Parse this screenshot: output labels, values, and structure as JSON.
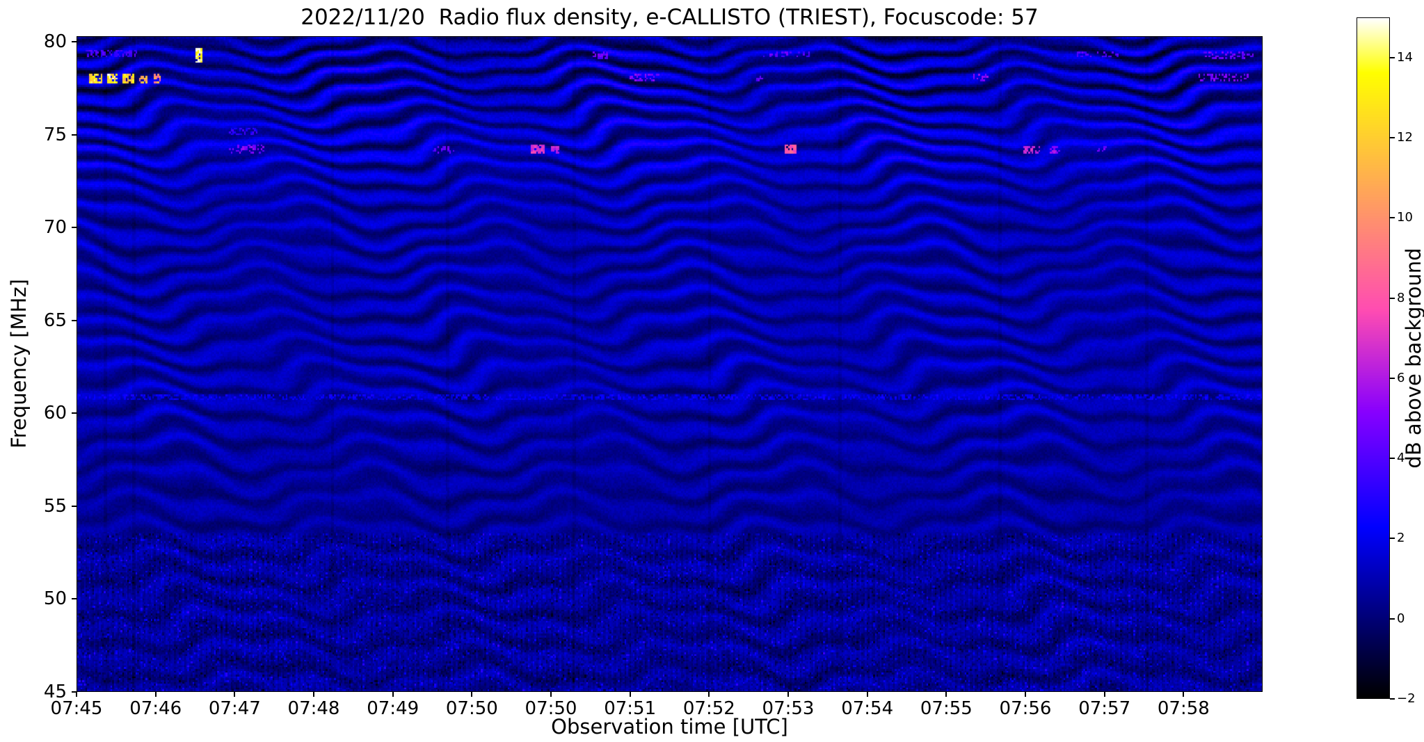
{
  "colors": {
    "background": "#ffffff",
    "axes_text": "#000000"
  },
  "chart_data": {
    "type": "heatmap",
    "title": "2022/11/20  Radio flux density, e-CALLISTO (TRIEST), Focuscode: 57",
    "xlabel": "Observation time [UTC]",
    "ylabel": "Frequency [MHz]",
    "x_ticks": [
      "07:45",
      "07:46",
      "07:47",
      "07:48",
      "07:49",
      "07:50",
      "07:50",
      "07:51",
      "07:52",
      "07:53",
      "07:54",
      "07:55",
      "07:56",
      "07:57",
      "07:58"
    ],
    "y_ticks": [
      80,
      75,
      70,
      65,
      60,
      55,
      50,
      45
    ],
    "ylim": [
      45,
      80.3
    ],
    "time_span_minutes": 14.33,
    "grid_on": false,
    "colorbar": {
      "label": "dB above background",
      "vmin": -2,
      "vmax": 15,
      "colormap": "gnuplot2",
      "ticks": [
        {
          "v": 14,
          "label": "14"
        },
        {
          "v": 12,
          "label": "12"
        },
        {
          "v": 10,
          "label": "10"
        },
        {
          "v": 8,
          "label": "8"
        },
        {
          "v": 6,
          "label": "6"
        },
        {
          "v": 4,
          "label": "4"
        },
        {
          "v": 2,
          "label": "2"
        },
        {
          "v": 0,
          "label": "0"
        },
        {
          "v": -2,
          "label": "−2"
        }
      ]
    },
    "summary": "Dynamic radio spectrum 45–80 MHz vs time 07:45–07:59 UTC. Background mostly −2 to +3 dB (black/dark-blue with wavy blue interference fringes, fringe spacing ~1–1.8 MHz, undulating with ~2.5 min period). Narrowband RFI: strong bursts near 78 MHz reaching ~11–15 dB (yellow/white) during 07:45–07:46 and a white-yellow spike near 79.3 MHz at ~07:46:30; magenta bursts ~5–8 dB near 74.2 MHz at ~07:47, 07:50–07:51, 07:53, 07:55–07:56; fainter violet dashes near 78 and 79.3 MHz through 07:51–07:58; speckled noisy texture below ~53 MHz; faint persistent bright line near 60.9 MHz.",
    "pattern": {
      "seed": 20221120,
      "grid": {
        "cols": 710,
        "rows": 353
      },
      "band": {
        "spacing0": 0.92,
        "spacingSlope": 0.024
      },
      "harm2": 0.22,
      "base": [
        [
          45,
          0.45
        ],
        [
          50,
          0.5
        ],
        [
          53,
          0.55
        ],
        [
          57,
          0.62
        ],
        [
          61,
          0.8
        ],
        [
          68,
          0.78
        ],
        [
          72,
          0.85
        ],
        [
          74,
          1.1
        ],
        [
          75.5,
          1.05
        ],
        [
          77,
          0.75
        ],
        [
          78.5,
          0.8
        ],
        [
          80.3,
          0.55
        ]
      ],
      "amp": [
        [
          45,
          0.5
        ],
        [
          50,
          0.55
        ],
        [
          53,
          0.5
        ],
        [
          57,
          0.6
        ],
        [
          61,
          0.8
        ],
        [
          68,
          0.8
        ],
        [
          72,
          0.9
        ],
        [
          74,
          1.25
        ],
        [
          76,
          1.3
        ],
        [
          78,
          1.6
        ],
        [
          79.5,
          1.5
        ],
        [
          80.3,
          1.0
        ]
      ],
      "noise": [
        [
          45,
          0.95
        ],
        [
          52,
          0.9
        ],
        [
          54,
          0.55
        ],
        [
          70,
          0.5
        ],
        [
          76,
          0.6
        ],
        [
          80.3,
          0.7
        ]
      ],
      "wobble": {
        "w1": [
          [
            45,
            0.3
          ],
          [
            62,
            0.42
          ],
          [
            80.3,
            0.55
          ]
        ],
        "period1": 2.6,
        "k1": 0.034,
        "a1": 0.18,
        "b1": 0.5,
        "w2": 0.2,
        "period2": 1.05,
        "k2": 0.12,
        "fade": 0.25,
        "fadePeriod": 3.3,
        "fadeK": 0.02
      },
      "speckle": {
        "fmax": 53.5,
        "hi": 0.93,
        "lo": 0.07,
        "boost": 1.1,
        "cut": 1.0
      },
      "stripe": {
        "amp": 0.3,
        "period": 3.1
      },
      "vlines": {
        "positions": [
          0.023,
          0.047,
          0.214,
          0.311,
          0.418,
          0.533,
          0.642,
          0.778,
          0.902
        ],
        "strength": 0.35
      }
    },
    "bright_features": [
      {
        "x0": 0.006,
        "x1": 0.05,
        "f0": 79.15,
        "f1": 79.55,
        "db": 3.8,
        "density": 0.45
      },
      {
        "x0": 0.009,
        "x1": 0.021,
        "f0": 77.8,
        "f1": 78.3,
        "db": 12.5,
        "density": 0.8
      },
      {
        "x0": 0.025,
        "x1": 0.033,
        "f0": 77.8,
        "f1": 78.3,
        "db": 13.5,
        "density": 0.8
      },
      {
        "x0": 0.037,
        "x1": 0.047,
        "f0": 77.85,
        "f1": 78.25,
        "db": 12,
        "density": 0.7
      },
      {
        "x0": 0.052,
        "x1": 0.058,
        "f0": 77.8,
        "f1": 78.2,
        "db": 11,
        "density": 0.7
      },
      {
        "x0": 0.062,
        "x1": 0.07,
        "f0": 77.85,
        "f1": 78.25,
        "db": 10,
        "density": 0.6
      },
      {
        "x0": 0.099,
        "x1": 0.1045,
        "f0": 78.9,
        "f1": 79.65,
        "db": 14.5,
        "density": 0.95
      },
      {
        "x0": 0.126,
        "x1": 0.158,
        "f0": 74.0,
        "f1": 74.45,
        "db": 5.0,
        "density": 0.4
      },
      {
        "x0": 0.128,
        "x1": 0.152,
        "f0": 75.0,
        "f1": 75.35,
        "db": 3.2,
        "density": 0.5
      },
      {
        "x0": 0.3,
        "x1": 0.318,
        "f0": 74.05,
        "f1": 74.4,
        "db": 4.5,
        "density": 0.35
      },
      {
        "x0": 0.383,
        "x1": 0.394,
        "f0": 74.0,
        "f1": 74.45,
        "db": 7.0,
        "density": 0.8
      },
      {
        "x0": 0.399,
        "x1": 0.407,
        "f0": 74.05,
        "f1": 74.4,
        "db": 6.0,
        "density": 0.7
      },
      {
        "x0": 0.435,
        "x1": 0.447,
        "f0": 79.1,
        "f1": 79.5,
        "db": 4.5,
        "density": 0.5
      },
      {
        "x0": 0.466,
        "x1": 0.492,
        "f0": 77.9,
        "f1": 78.3,
        "db": 5.0,
        "density": 0.45
      },
      {
        "x0": 0.572,
        "x1": 0.58,
        "f0": 77.9,
        "f1": 78.2,
        "db": 4.5,
        "density": 0.5
      },
      {
        "x0": 0.578,
        "x1": 0.618,
        "f0": 79.15,
        "f1": 79.5,
        "db": 4.2,
        "density": 0.35
      },
      {
        "x0": 0.597,
        "x1": 0.606,
        "f0": 74.05,
        "f1": 74.5,
        "db": 8.0,
        "density": 0.85
      },
      {
        "x0": 0.755,
        "x1": 0.77,
        "f0": 77.95,
        "f1": 78.3,
        "db": 5.0,
        "density": 0.45
      },
      {
        "x0": 0.798,
        "x1": 0.812,
        "f0": 74.0,
        "f1": 74.4,
        "db": 6.5,
        "density": 0.6
      },
      {
        "x0": 0.82,
        "x1": 0.829,
        "f0": 74.05,
        "f1": 74.4,
        "db": 5.5,
        "density": 0.6
      },
      {
        "x0": 0.842,
        "x1": 0.878,
        "f0": 79.15,
        "f1": 79.5,
        "db": 4.0,
        "density": 0.4
      },
      {
        "x0": 0.86,
        "x1": 0.868,
        "f0": 74.1,
        "f1": 74.4,
        "db": 5.0,
        "density": 0.5
      },
      {
        "x0": 0.944,
        "x1": 0.988,
        "f0": 77.9,
        "f1": 78.3,
        "db": 5.0,
        "density": 0.4
      },
      {
        "x0": 0.95,
        "x1": 0.992,
        "f0": 79.1,
        "f1": 79.5,
        "db": 4.5,
        "density": 0.4
      },
      {
        "x0": 0.0,
        "x1": 1.0,
        "f0": 60.75,
        "f1": 61.0,
        "db": 2.0,
        "density": 0.5
      }
    ]
  }
}
